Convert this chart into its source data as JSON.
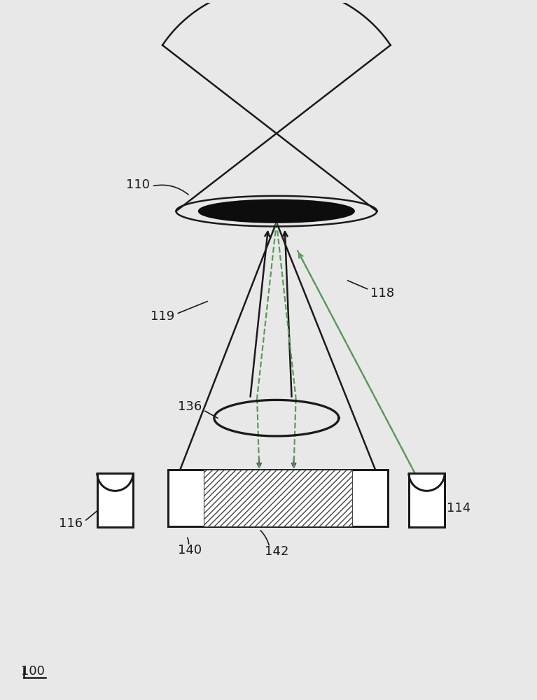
{
  "bg_color": "#e8e8e8",
  "line_color": "#1a1a1a",
  "dash_color": "#5a9a5a",
  "hatch_color": "#333333",
  "label_110": "110",
  "label_118": "118",
  "label_119": "119",
  "label_136": "136",
  "label_116": "116",
  "label_114": "114",
  "label_140": "140",
  "label_142": "142",
  "label_100": "100",
  "font_size": 13
}
